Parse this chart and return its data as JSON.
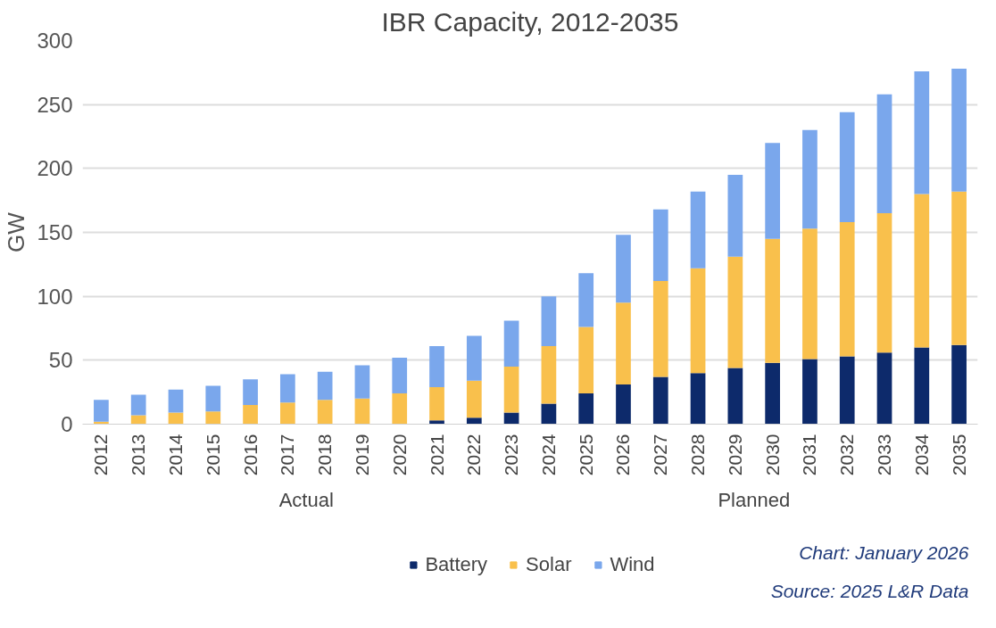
{
  "chart_data": {
    "type": "bar",
    "stacked": true,
    "title": "IBR Capacity, 2012-2035",
    "ylabel": "GW",
    "categories": [
      "2012",
      "2013",
      "2014",
      "2015",
      "2016",
      "2017",
      "2018",
      "2019",
      "2020",
      "2021",
      "2022",
      "2023",
      "2024",
      "2025",
      "2026",
      "2027",
      "2028",
      "2029",
      "2030",
      "2031",
      "2032",
      "2033",
      "2034",
      "2035"
    ],
    "series": [
      {
        "name": "Battery",
        "color": "#0d2a6b",
        "values": [
          0,
          0,
          0,
          0,
          0,
          0,
          0,
          0,
          0,
          3,
          5,
          9,
          16,
          24,
          31,
          37,
          40,
          44,
          48,
          51,
          53,
          56,
          60,
          62
        ]
      },
      {
        "name": "Solar",
        "color": "#f9c04c",
        "values": [
          2,
          7,
          9,
          10,
          15,
          17,
          19,
          20,
          24,
          26,
          29,
          36,
          45,
          52,
          64,
          75,
          82,
          87,
          97,
          102,
          105,
          109,
          120,
          120
        ]
      },
      {
        "name": "Wind",
        "color": "#7aa7ec",
        "values": [
          17,
          16,
          18,
          20,
          20,
          22,
          22,
          26,
          28,
          32,
          35,
          36,
          39,
          42,
          53,
          56,
          60,
          64,
          75,
          77,
          86,
          93,
          96,
          96
        ]
      }
    ],
    "ylim": [
      0,
      300
    ],
    "yticks": [
      0,
      50,
      100,
      150,
      200,
      250,
      300
    ],
    "grid": "y",
    "legend": "bottom",
    "annotations": [
      "Actual",
      "Planned",
      "Chart: January 2026",
      "Source: 2025 L&R Data"
    ]
  }
}
